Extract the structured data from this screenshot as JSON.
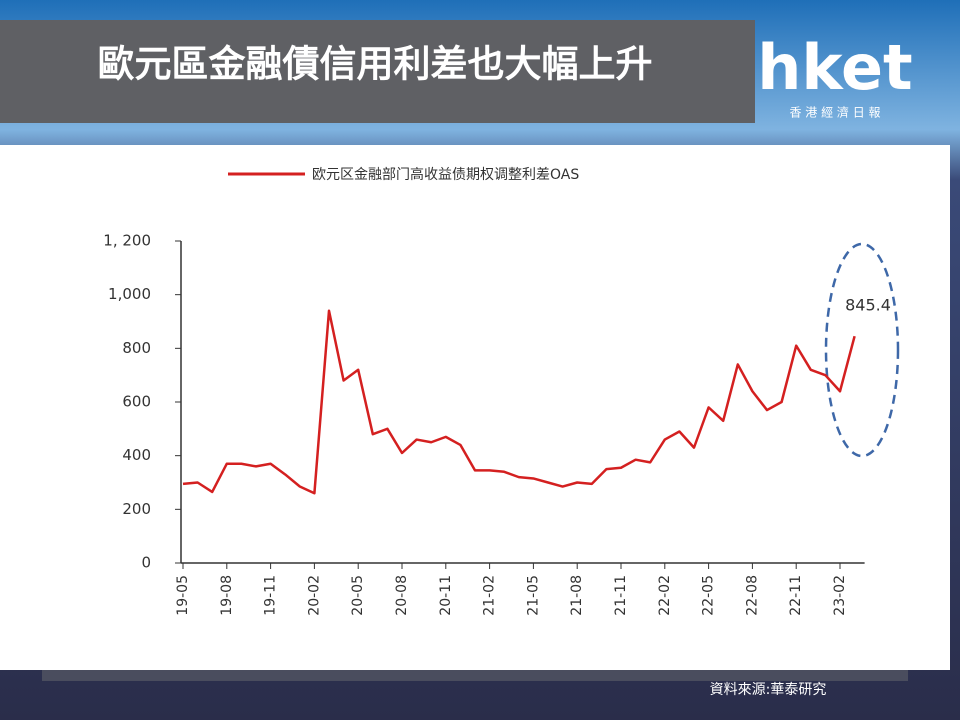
{
  "chart_data": {
    "type": "line",
    "title": "歐元區金融債信用利差也大幅上升",
    "brand": "hket",
    "brand_subtitle": "香 港 經 濟 日 報",
    "source": "資料來源:華泰研究",
    "annotation": "845.4",
    "categories": [
      "19-05",
      null,
      null,
      "19-08",
      null,
      null,
      "19-11",
      null,
      null,
      "20-02",
      null,
      null,
      "20-05",
      null,
      null,
      "20-08",
      null,
      null,
      "20-11",
      null,
      null,
      "21-02",
      null,
      null,
      "21-05",
      null,
      null,
      "21-08",
      null,
      null,
      "21-11",
      null,
      null,
      "22-02",
      null,
      null,
      "22-05",
      null,
      null,
      "22-08",
      null,
      null,
      "22-11",
      null,
      null,
      "23-02",
      null
    ],
    "series": [
      {
        "name": "欧元区金融部门高收益债期权调整利差OAS",
        "color": "#d42020",
        "values": [
          295,
          300,
          265,
          370,
          370,
          360,
          370,
          330,
          285,
          260,
          940,
          680,
          720,
          480,
          500,
          410,
          460,
          450,
          470,
          440,
          345,
          345,
          340,
          320,
          315,
          300,
          285,
          300,
          295,
          350,
          355,
          385,
          375,
          460,
          490,
          430,
          580,
          530,
          740,
          640,
          570,
          600,
          810,
          720,
          700,
          640,
          845.4
        ]
      }
    ],
    "ylim": [
      0,
      1200
    ],
    "yticks": [
      0,
      200,
      400,
      600,
      800,
      {
        "value": 1000,
        "label": "1,000"
      },
      {
        "value": 1200,
        "label": "1, 200"
      }
    ]
  }
}
